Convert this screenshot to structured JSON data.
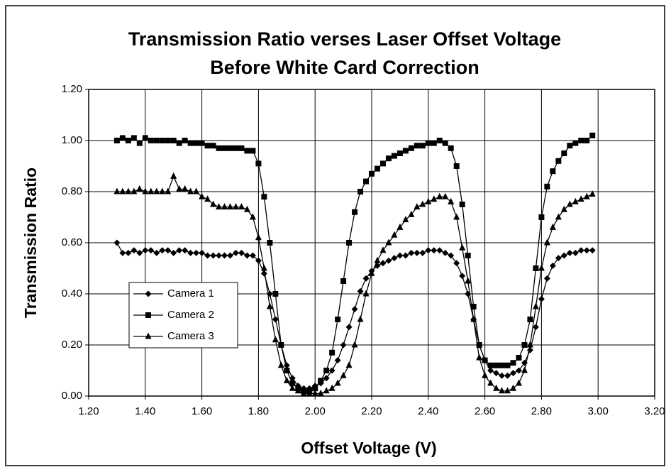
{
  "chart_data": {
    "type": "line",
    "title": "Transmission Ratio verses Laser Offset Voltage",
    "subtitle": "Before White Card Correction",
    "x_label": "Offset Voltage (V)",
    "y_label": "Transmission Ratio",
    "x": [
      1.3,
      1.32,
      1.34,
      1.36,
      1.38,
      1.4,
      1.42,
      1.44,
      1.46,
      1.48,
      1.5,
      1.52,
      1.54,
      1.56,
      1.58,
      1.6,
      1.62,
      1.64,
      1.66,
      1.68,
      1.7,
      1.72,
      1.74,
      1.76,
      1.78,
      1.8,
      1.82,
      1.84,
      1.86,
      1.88,
      1.9,
      1.92,
      1.94,
      1.96,
      1.98,
      2.0,
      2.02,
      2.04,
      2.06,
      2.08,
      2.1,
      2.12,
      2.14,
      2.16,
      2.18,
      2.2,
      2.22,
      2.24,
      2.26,
      2.28,
      2.3,
      2.32,
      2.34,
      2.36,
      2.38,
      2.4,
      2.42,
      2.44,
      2.46,
      2.48,
      2.5,
      2.52,
      2.54,
      2.56,
      2.58,
      2.6,
      2.62,
      2.64,
      2.66,
      2.68,
      2.7,
      2.72,
      2.74,
      2.76,
      2.78,
      2.8,
      2.82,
      2.84,
      2.86,
      2.88,
      2.9,
      2.92,
      2.94,
      2.96,
      2.98
    ],
    "series": [
      {
        "name": "Camera 1",
        "color": "#000000",
        "marker": "diamond",
        "values": [
          0.6,
          0.56,
          0.56,
          0.57,
          0.56,
          0.57,
          0.57,
          0.56,
          0.57,
          0.57,
          0.56,
          0.57,
          0.57,
          0.56,
          0.56,
          0.56,
          0.55,
          0.55,
          0.55,
          0.55,
          0.55,
          0.56,
          0.56,
          0.55,
          0.55,
          0.53,
          0.48,
          0.4,
          0.3,
          0.2,
          0.12,
          0.07,
          0.04,
          0.03,
          0.03,
          0.04,
          0.05,
          0.07,
          0.1,
          0.14,
          0.2,
          0.27,
          0.34,
          0.41,
          0.46,
          0.49,
          0.51,
          0.52,
          0.53,
          0.54,
          0.55,
          0.55,
          0.56,
          0.56,
          0.56,
          0.57,
          0.57,
          0.57,
          0.56,
          0.55,
          0.52,
          0.47,
          0.4,
          0.3,
          0.2,
          0.14,
          0.1,
          0.09,
          0.08,
          0.08,
          0.09,
          0.1,
          0.13,
          0.18,
          0.27,
          0.38,
          0.46,
          0.51,
          0.54,
          0.55,
          0.56,
          0.56,
          0.57,
          0.57,
          0.57
        ]
      },
      {
        "name": "Camera 2",
        "color": "#000000",
        "marker": "square",
        "values": [
          1.0,
          1.01,
          1.0,
          1.01,
          0.99,
          1.01,
          1.0,
          1.0,
          1.0,
          1.0,
          1.0,
          0.99,
          1.0,
          0.99,
          0.99,
          0.99,
          0.98,
          0.98,
          0.97,
          0.97,
          0.97,
          0.97,
          0.97,
          0.96,
          0.96,
          0.91,
          0.78,
          0.6,
          0.4,
          0.2,
          0.1,
          0.05,
          0.03,
          0.02,
          0.02,
          0.03,
          0.06,
          0.1,
          0.17,
          0.3,
          0.45,
          0.6,
          0.72,
          0.8,
          0.84,
          0.87,
          0.89,
          0.91,
          0.93,
          0.94,
          0.95,
          0.96,
          0.97,
          0.98,
          0.98,
          0.99,
          0.99,
          1.0,
          0.99,
          0.97,
          0.9,
          0.75,
          0.55,
          0.35,
          0.2,
          0.14,
          0.12,
          0.12,
          0.12,
          0.12,
          0.13,
          0.15,
          0.2,
          0.3,
          0.5,
          0.7,
          0.82,
          0.88,
          0.92,
          0.95,
          0.98,
          0.99,
          1.0,
          1.0,
          1.02
        ]
      },
      {
        "name": "Camera 3",
        "color": "#000000",
        "marker": "triangle",
        "values": [
          0.8,
          0.8,
          0.8,
          0.8,
          0.81,
          0.8,
          0.8,
          0.8,
          0.8,
          0.8,
          0.86,
          0.81,
          0.81,
          0.8,
          0.8,
          0.78,
          0.77,
          0.75,
          0.74,
          0.74,
          0.74,
          0.74,
          0.74,
          0.73,
          0.7,
          0.62,
          0.5,
          0.35,
          0.22,
          0.12,
          0.06,
          0.03,
          0.02,
          0.01,
          0.01,
          0.01,
          0.01,
          0.02,
          0.03,
          0.05,
          0.08,
          0.12,
          0.2,
          0.3,
          0.4,
          0.48,
          0.53,
          0.57,
          0.6,
          0.63,
          0.66,
          0.69,
          0.71,
          0.74,
          0.75,
          0.76,
          0.77,
          0.78,
          0.78,
          0.76,
          0.7,
          0.58,
          0.45,
          0.3,
          0.15,
          0.08,
          0.05,
          0.03,
          0.02,
          0.02,
          0.03,
          0.05,
          0.1,
          0.2,
          0.35,
          0.5,
          0.6,
          0.66,
          0.7,
          0.73,
          0.75,
          0.76,
          0.77,
          0.78,
          0.79
        ]
      }
    ],
    "xlim": [
      1.2,
      3.2
    ],
    "ylim": [
      0,
      1.2
    ],
    "xticks": [
      {
        "value": 1.2,
        "label": "1.20"
      },
      {
        "value": 1.4,
        "label": "1.40"
      },
      {
        "value": 1.6,
        "label": "1.60"
      },
      {
        "value": 1.8,
        "label": "1.80"
      },
      {
        "value": 2,
        "label": "2.00"
      },
      {
        "value": 2.2,
        "label": "2.20"
      },
      {
        "value": 2.4,
        "label": "2.40"
      },
      {
        "value": 2.6,
        "label": "2.60"
      },
      {
        "value": 2.8,
        "label": "2.80"
      },
      {
        "value": 3,
        "label": "3.00"
      },
      {
        "value": 3.2,
        "label": "3.20"
      }
    ],
    "yticks": [
      {
        "value": 0,
        "label": "0.00"
      },
      {
        "value": 0.2,
        "label": "0.20"
      },
      {
        "value": 0.4,
        "label": "0.40"
      },
      {
        "value": 0.6,
        "label": "0.60"
      },
      {
        "value": 0.8,
        "label": "0.80"
      },
      {
        "value": 1,
        "label": "1.00"
      },
      {
        "value": 1.2,
        "label": "1.20"
      }
    ],
    "grid": true,
    "legend": "left"
  }
}
